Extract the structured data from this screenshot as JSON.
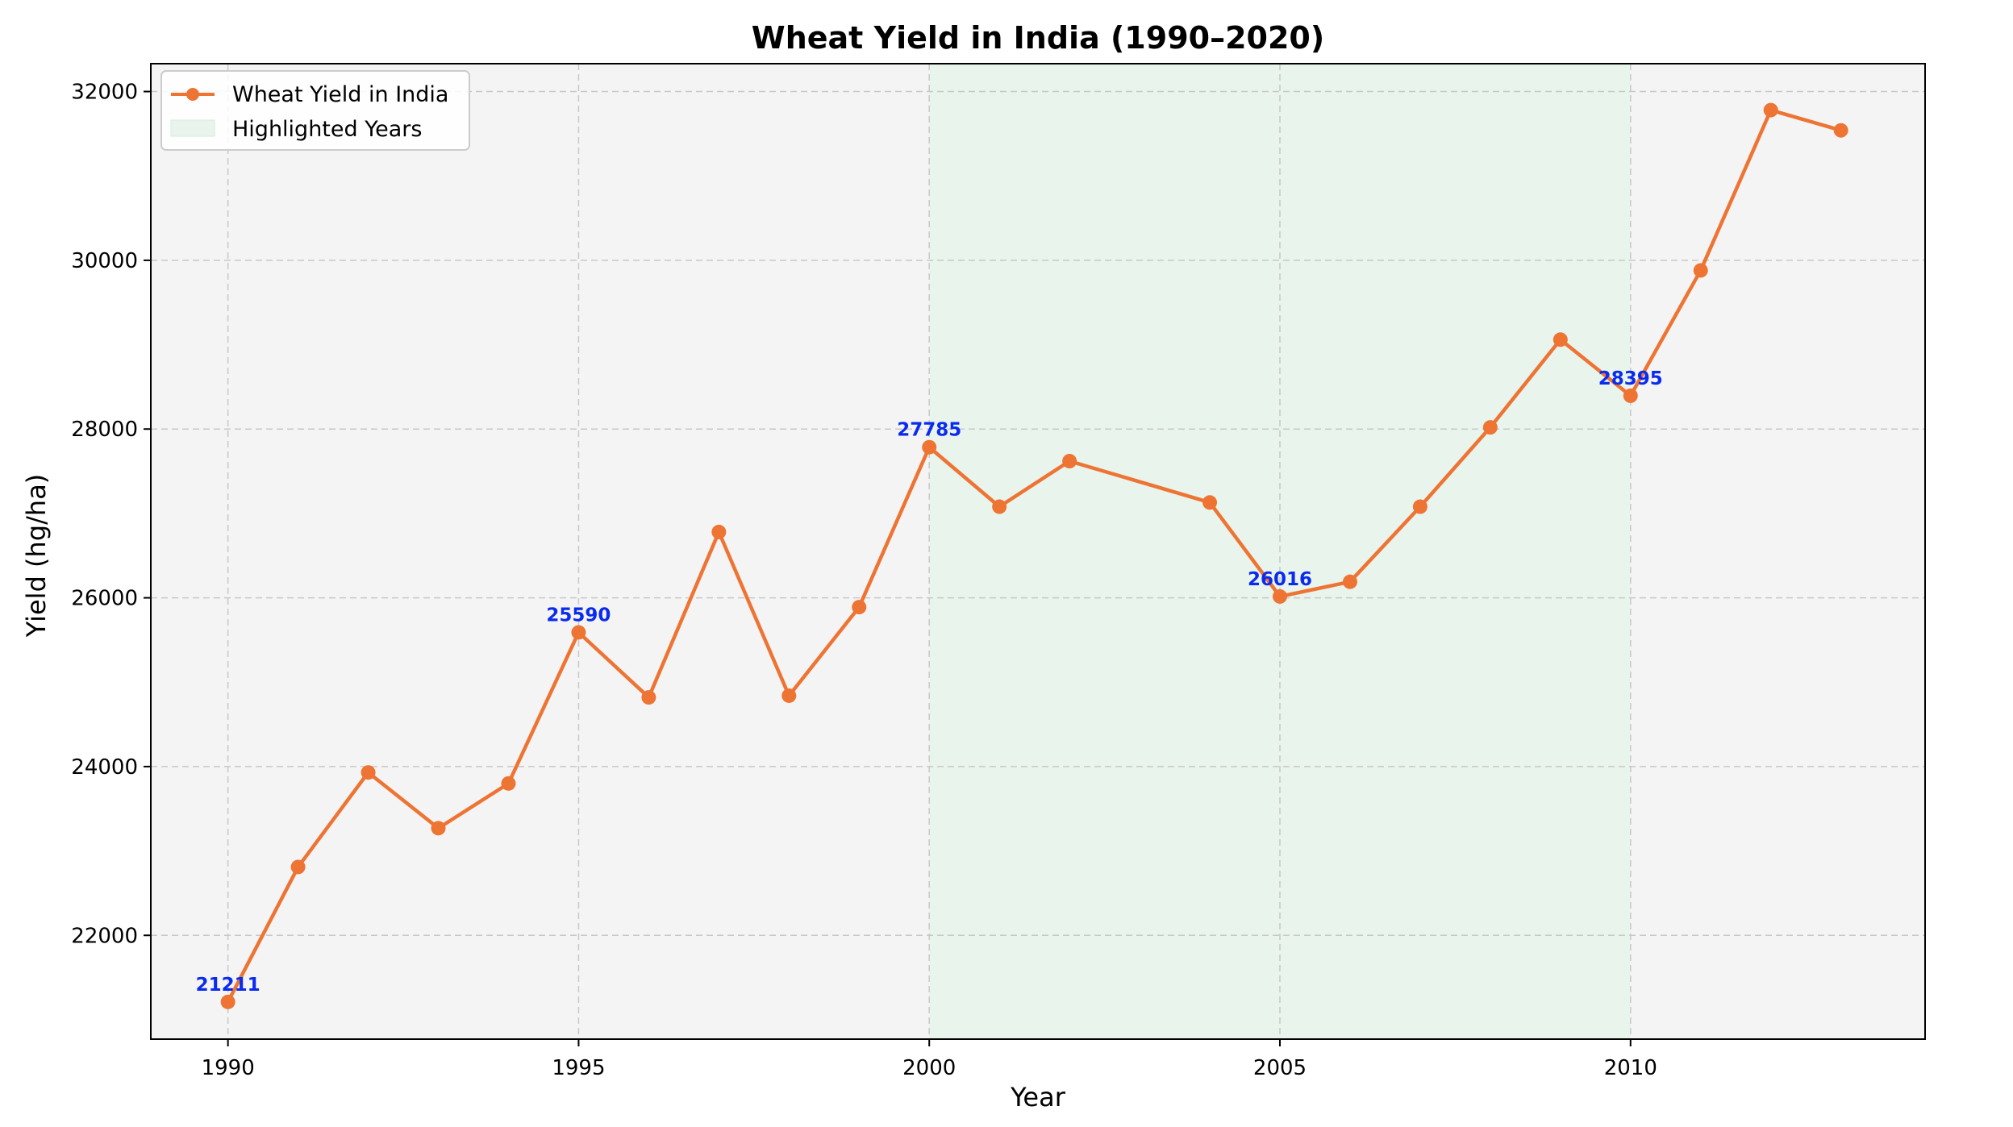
{
  "chart_data": {
    "type": "line",
    "title": "Wheat Yield in India (1990–2020)",
    "xlabel": "Year",
    "ylabel": "Yield (hg/ha)",
    "xlim": [
      1988.9,
      2014.2
    ],
    "ylim": [
      20770,
      32330
    ],
    "xticks": [
      1990,
      1995,
      2000,
      2005,
      2010
    ],
    "yticks": [
      22000,
      24000,
      26000,
      28000,
      30000,
      32000
    ],
    "grid": true,
    "legend_position": "top-left",
    "colors": {
      "line": "#ee7434",
      "annotation": "#0a2bef",
      "plot_bg": "#f4f4f4",
      "highlight": "#e8f4ec",
      "grid": "#c8c8c8"
    },
    "series": [
      {
        "name": "Wheat Yield in India",
        "x": [
          1990,
          1991,
          1992,
          1993,
          1994,
          1995,
          1996,
          1997,
          1998,
          1999,
          2000,
          2001,
          2002,
          2004,
          2005,
          2006,
          2007,
          2008,
          2009,
          2010,
          2011,
          2012,
          2013
        ],
        "y": [
          21211,
          22810,
          23930,
          23270,
          23800,
          25590,
          24820,
          26780,
          24840,
          25890,
          27785,
          27080,
          27620,
          27130,
          26016,
          26190,
          27080,
          28020,
          29060,
          28395,
          29880,
          31780,
          31540
        ]
      }
    ],
    "highlight": {
      "name": "Highlighted Years",
      "x_range": [
        2000,
        2010
      ]
    },
    "annotations": [
      {
        "x": 1990,
        "y": 21211,
        "text": "21211"
      },
      {
        "x": 1995,
        "y": 25590,
        "text": "25590"
      },
      {
        "x": 2000,
        "y": 27785,
        "text": "27785"
      },
      {
        "x": 2005,
        "y": 26016,
        "text": "26016"
      },
      {
        "x": 2010,
        "y": 28395,
        "text": "28395"
      }
    ]
  }
}
